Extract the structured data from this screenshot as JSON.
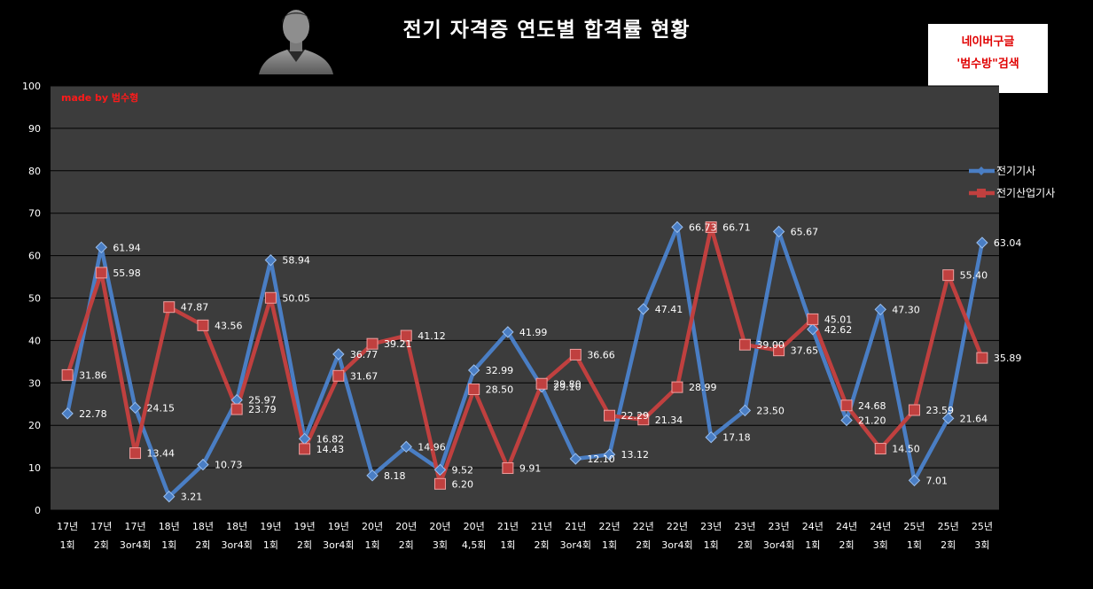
{
  "chart_data": {
    "type": "line",
    "title": "전기 자격증 연도별 합격률 현황",
    "watermark": "made by  범수형",
    "badge": {
      "line1": "네이버구글",
      "line2": "'범수방\"검색"
    },
    "ylim": [
      0,
      100
    ],
    "yticks": [
      0,
      10,
      20,
      30,
      40,
      50,
      60,
      70,
      80,
      90,
      100
    ],
    "grid": true,
    "legend_position": "right",
    "categories": [
      [
        "17년",
        "1회"
      ],
      [
        "17년",
        "2회"
      ],
      [
        "17년",
        "3or4회"
      ],
      [
        "18년",
        "1회"
      ],
      [
        "18년",
        "2회"
      ],
      [
        "18년",
        "3or4회"
      ],
      [
        "19년",
        "1회"
      ],
      [
        "19년",
        "2회"
      ],
      [
        "19년",
        "3or4회"
      ],
      [
        "20년",
        "1회"
      ],
      [
        "20년",
        "2회"
      ],
      [
        "20년",
        "3회"
      ],
      [
        "20년",
        "4,5회"
      ],
      [
        "21년",
        "1회"
      ],
      [
        "21년",
        "2회"
      ],
      [
        "21년",
        "3or4회"
      ],
      [
        "22년",
        "1회"
      ],
      [
        "22년",
        "2회"
      ],
      [
        "22년",
        "3or4회"
      ],
      [
        "23년",
        "1회"
      ],
      [
        "23년",
        "2회"
      ],
      [
        "23년",
        "3or4회"
      ],
      [
        "24년",
        "1회"
      ],
      [
        "24년",
        "2회"
      ],
      [
        "24년",
        "3회"
      ],
      [
        "25년",
        "1회"
      ],
      [
        "25년",
        "2회"
      ],
      [
        "25년",
        "3회"
      ]
    ],
    "series": [
      {
        "name": "전기기사",
        "color": "#4a7ec4",
        "values": [
          22.78,
          61.94,
          24.15,
          3.21,
          10.73,
          25.97,
          58.94,
          16.82,
          36.77,
          8.18,
          14.96,
          9.52,
          32.99,
          41.99,
          29.1,
          12.1,
          13.12,
          47.41,
          66.73,
          17.18,
          23.5,
          65.67,
          42.62,
          21.2,
          47.3,
          7.01,
          21.64,
          63.04
        ]
      },
      {
        "name": "전기산업기사",
        "color": "#c0403f",
        "values": [
          31.86,
          55.98,
          13.44,
          47.87,
          43.56,
          23.79,
          50.05,
          14.43,
          31.67,
          39.21,
          41.12,
          6.2,
          28.5,
          9.91,
          29.8,
          36.66,
          22.29,
          21.34,
          28.99,
          66.71,
          39.0,
          37.65,
          45.01,
          24.68,
          14.5,
          23.59,
          55.4,
          35.89
        ]
      }
    ]
  }
}
